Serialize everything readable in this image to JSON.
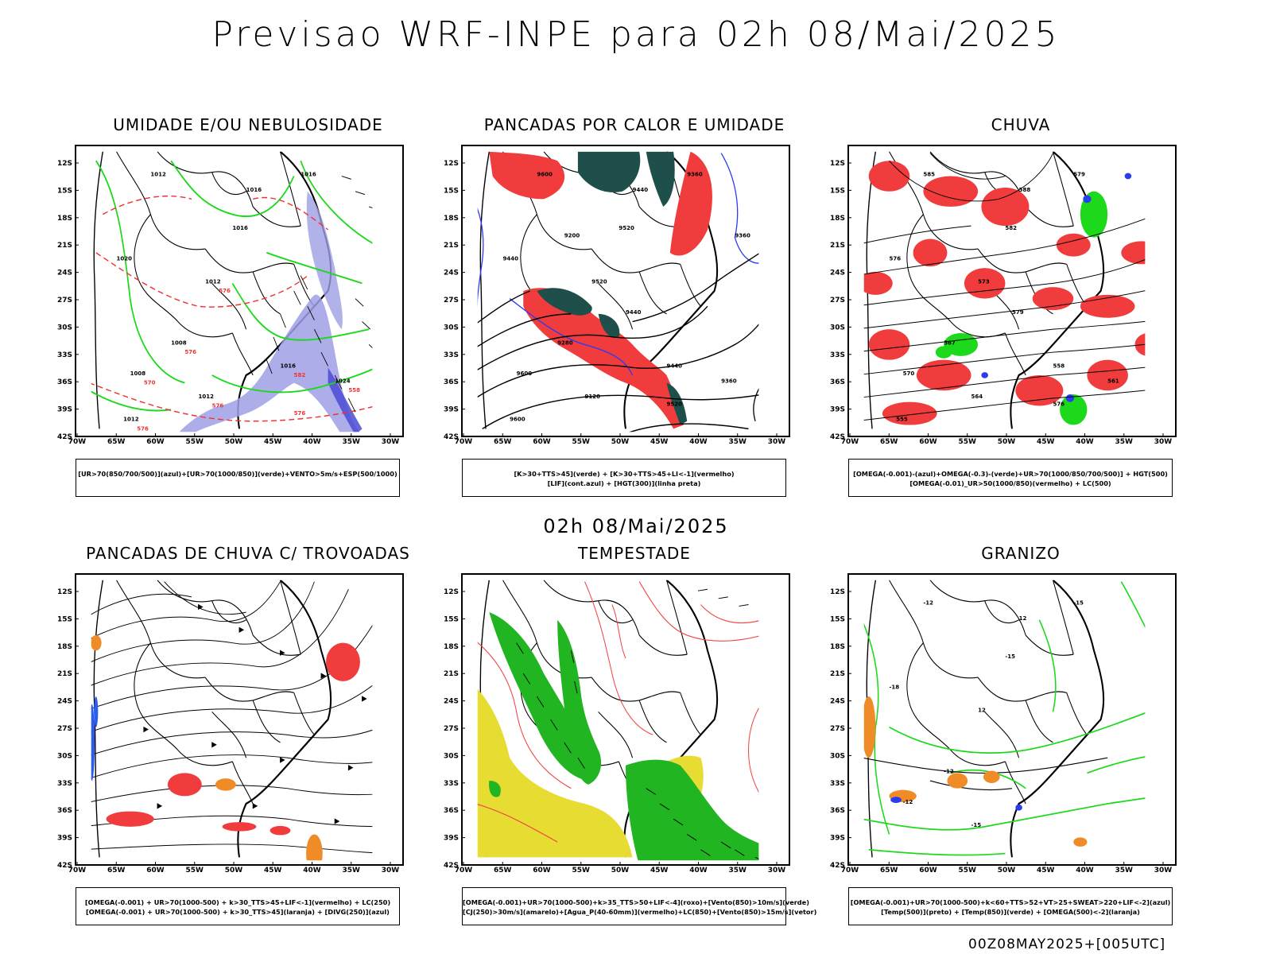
{
  "header": {
    "title": "Previsao WRF-INPE  para 02h 08/Mai/2025"
  },
  "subtitle": "02h 08/Mai/2025",
  "footer": "00Z08MAY2025+[005UTC]",
  "axes": {
    "lat_labels": [
      "12S",
      "15S",
      "18S",
      "21S",
      "24S",
      "27S",
      "30S",
      "33S",
      "36S",
      "39S",
      "42S"
    ],
    "lon_labels": [
      "70W",
      "65W",
      "60W",
      "55W",
      "50W",
      "45W",
      "40W",
      "35W",
      "30W"
    ]
  },
  "panels": [
    {
      "id": "umidade",
      "title": "UMIDADE E/OU NEBULOSIDADE",
      "caption": [
        "[UR>70(850/700/500)](azul)+[UR>70(1000/850)](verde)+VENTO>5m/s+ESP(500/1000)"
      ],
      "contour_labels": [
        "1012",
        "1016",
        "1016",
        "1016",
        "1020",
        "1012",
        "1008",
        "1008",
        "1012",
        "1024",
        "1016",
        "1012"
      ],
      "red_labels": [
        "576",
        "570",
        "576",
        "576",
        "558",
        "582",
        "576",
        "576"
      ],
      "colors": {
        "blue": "#9f9fe6",
        "green": "#1cd91c",
        "red": "#f03232"
      }
    },
    {
      "id": "pancadas-calor",
      "title": "PANCADAS POR CALOR E UMIDADE",
      "caption": [
        "[K>30+TTS>45](verde) + [K>30+TTS>45+LI<-1](vermelho)",
        "[LIF](cont.azul) + [HGT(300)](linha preta)"
      ],
      "contour_labels": [
        "9600",
        "9440",
        "9520",
        "9360",
        "9440",
        "9520",
        "9600",
        "9280",
        "9120",
        "9360",
        "9440",
        "9600",
        "9520",
        "9440",
        "9360",
        "9200"
      ],
      "colors": {
        "darkgreen": "#1f4f4a",
        "red": "#f03c3c",
        "blue": "#2b3cf0"
      }
    },
    {
      "id": "chuva",
      "title": "CHUVA",
      "caption": [
        "[OMEGA(-0.001)-(azul)+OMEGA(-0.3)-(verde)+UR>70(1000/850/700/500)] + HGT(500)",
        "[OMEGA(-0.01)_UR>50(1000/850)(vermelho) + LC(500)"
      ],
      "contour_labels": [
        "585",
        "588",
        "582",
        "579",
        "576",
        "573",
        "570",
        "567",
        "564",
        "561",
        "558",
        "555",
        "576",
        "579"
      ],
      "colors": {
        "red": "#f03c3c",
        "green": "#1cd91c",
        "blue": "#2b3cf0"
      }
    },
    {
      "id": "pancadas-trovoadas",
      "title": "PANCADAS DE CHUVA C/ TROVOADAS",
      "caption": [
        "[OMEGA(-0.001) + UR>70(1000-500) + k>30_TTS>45+LIF<-1](vermelho) + LC(250)",
        "[OMEGA(-0.001) + UR>70(1000-500) + k>30_TTS>45](laranja) + [DIVG(250)](azul)"
      ],
      "colors": {
        "red": "#f03c3c",
        "orange": "#f08c28",
        "blue": "#2b5cf0"
      }
    },
    {
      "id": "tempestade",
      "title": "TEMPESTADE",
      "caption": [
        "[OMEGA(-0.001)+UR>70(1000-500)+k>35_TTS>50+LIF<-4](roxo)+[Vento(850)>10m/s](verde)",
        "[CJ(250)>30m/s](amarelo)+[Agua_P(40-60mm)](vermelho)+LC(850)+[Vento(850)>15m/s](vetor)"
      ],
      "colors": {
        "green": "#21b521",
        "yellow": "#e6dc32",
        "red": "#f04646"
      }
    },
    {
      "id": "granizo",
      "title": "GRANIZO",
      "caption": [
        "[OMEGA(-0.001)+UR>70(1000-500)+k<60+TTS>52+VT>25+SWEAT>220+LIF<-2](azul)",
        "[Temp(500)](preto) + [Temp(850)](verde) + [OMEGA(500)<-2](laranja)"
      ],
      "contour_labels": [
        "-12",
        "12",
        "-15",
        "-15",
        "-18",
        "12",
        "-12",
        "-12",
        "-15"
      ],
      "colors": {
        "green": "#1cd91c",
        "orange": "#f08c28",
        "blue": "#2b3cf0"
      }
    }
  ]
}
